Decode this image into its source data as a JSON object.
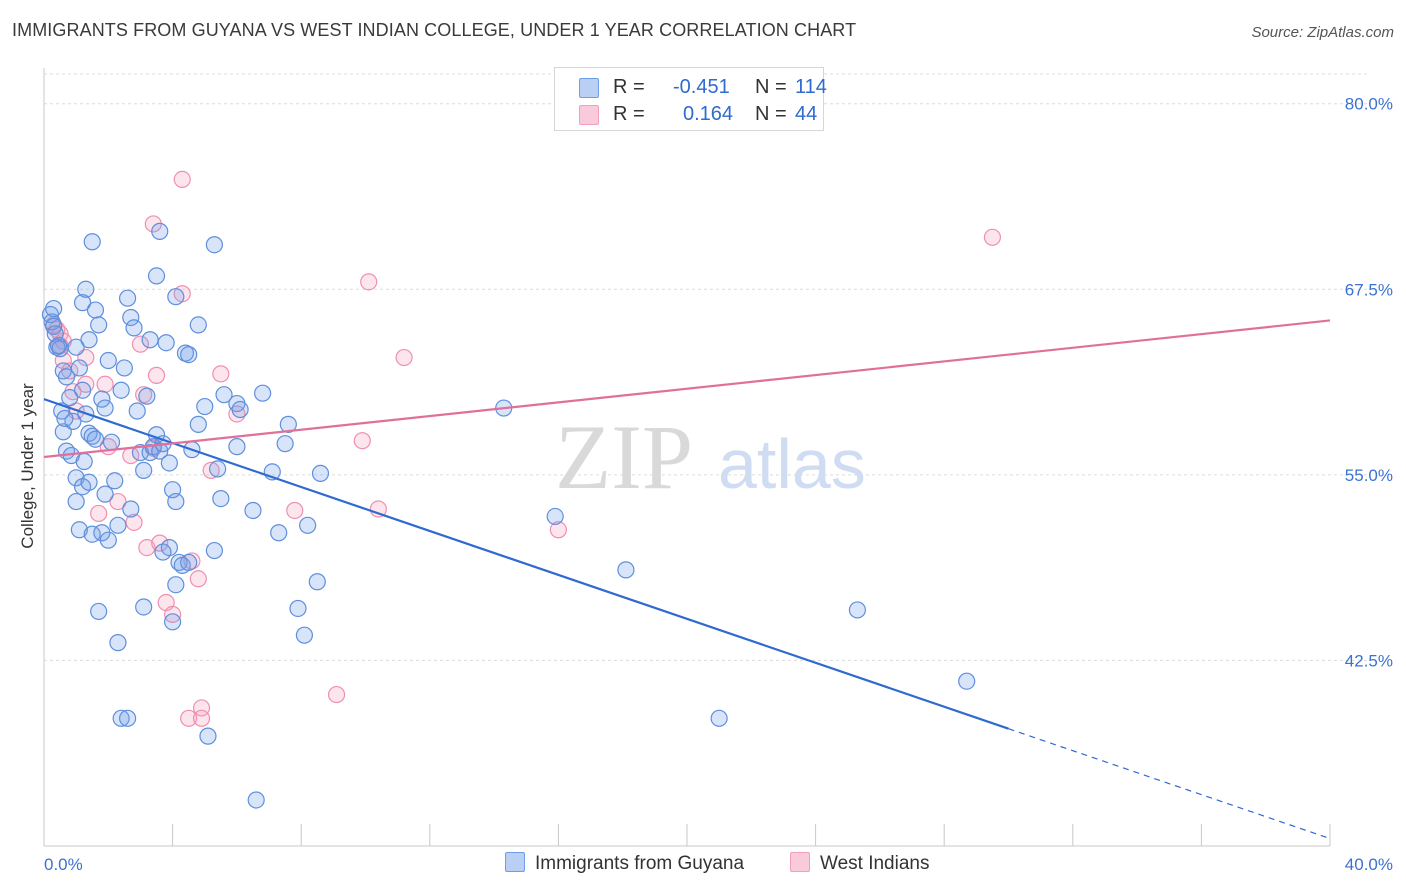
{
  "title": "IMMIGRANTS FROM GUYANA VS WEST INDIAN COLLEGE, UNDER 1 YEAR CORRELATION CHART",
  "source": "Source: ZipAtlas.com",
  "watermark": {
    "zip": "ZIP",
    "atlas": "atlas"
  },
  "legend": {
    "rows": [
      {
        "r_label": "R =",
        "r_value": "-0.451",
        "n_label": "N =",
        "n_value": "114"
      },
      {
        "r_label": "R =",
        "r_value": "0.164",
        "n_label": "N =",
        "n_value": "44"
      }
    ]
  },
  "chart_data": {
    "type": "scatter",
    "title": "IMMIGRANTS FROM GUYANA VS WEST INDIAN COLLEGE, UNDER 1 YEAR CORRELATION CHART",
    "xlabel": "",
    "ylabel": "College, Under 1 year",
    "xlim": [
      0,
      40
    ],
    "ylim": [
      30,
      82
    ],
    "x_tick_labels": [
      "0.0%",
      "40.0%"
    ],
    "y_ticks": [
      42.5,
      55.0,
      67.5,
      80.0
    ],
    "y_tick_labels": [
      "42.5%",
      "55.0%",
      "67.5%",
      "80.0%"
    ],
    "grid": true,
    "legend_position": "top-center",
    "colors": {
      "guyana": "#6f9ee8",
      "guyana_line": "#2f6ad0",
      "west": "#f4a0bb",
      "west_line": "#e0709a"
    },
    "series": [
      {
        "name": "Immigrants from Guyana",
        "points": [
          [
            0.2,
            65.8
          ],
          [
            0.25,
            65.3
          ],
          [
            0.3,
            65
          ],
          [
            0.35,
            64.5
          ],
          [
            0.4,
            63.6
          ],
          [
            0.5,
            63.5
          ],
          [
            0.6,
            62
          ],
          [
            0.7,
            61.6
          ],
          [
            0.8,
            60.2
          ],
          [
            0.55,
            59.3
          ],
          [
            0.9,
            58.6
          ],
          [
            0.6,
            57.9
          ],
          [
            0.7,
            56.6
          ],
          [
            1.0,
            63.6
          ],
          [
            1.1,
            62.2
          ],
          [
            1.2,
            60.7
          ],
          [
            1.3,
            59.1
          ],
          [
            1.4,
            57.8
          ],
          [
            1.5,
            57.6
          ],
          [
            1.6,
            57.4
          ],
          [
            1.0,
            54.8
          ],
          [
            1.2,
            54.2
          ],
          [
            1.0,
            53.2
          ],
          [
            1.1,
            51.3
          ],
          [
            1.4,
            54.5
          ],
          [
            1.5,
            51
          ],
          [
            1.7,
            45.8
          ],
          [
            1.2,
            66.6
          ],
          [
            1.3,
            67.5
          ],
          [
            1.6,
            66.1
          ],
          [
            1.4,
            64.1
          ],
          [
            1.5,
            70.7
          ],
          [
            1.7,
            65.1
          ],
          [
            1.8,
            60.1
          ],
          [
            1.9,
            59.5
          ],
          [
            2.0,
            62.7
          ],
          [
            2.1,
            57.2
          ],
          [
            2.2,
            54.6
          ],
          [
            2.3,
            51.6
          ],
          [
            2.5,
            62.2
          ],
          [
            2.6,
            66.9
          ],
          [
            2.7,
            65.6
          ],
          [
            2.8,
            64.9
          ],
          [
            2.4,
            60.7
          ],
          [
            2.9,
            59.3
          ],
          [
            3.0,
            56.5
          ],
          [
            3.1,
            55.3
          ],
          [
            3.3,
            56.5
          ],
          [
            3.4,
            56.9
          ],
          [
            3.2,
            60.3
          ],
          [
            3.5,
            57.7
          ],
          [
            3.6,
            56.6
          ],
          [
            3.7,
            57.1
          ],
          [
            3.8,
            63.9
          ],
          [
            3.3,
            64.1
          ],
          [
            3.5,
            68.4
          ],
          [
            3.6,
            71.4
          ],
          [
            3.9,
            55.8
          ],
          [
            4.0,
            54.0
          ],
          [
            4.1,
            53.2
          ],
          [
            3.9,
            50.1
          ],
          [
            4.2,
            49.1
          ],
          [
            4.3,
            48.9
          ],
          [
            4.5,
            49.1
          ],
          [
            3.7,
            49.8
          ],
          [
            4.4,
            63.2
          ],
          [
            4.5,
            63.1
          ],
          [
            4.1,
            67
          ],
          [
            4.6,
            56.7
          ],
          [
            4.8,
            58.4
          ],
          [
            4.8,
            65.1
          ],
          [
            5.0,
            59.6
          ],
          [
            5.4,
            55.4
          ],
          [
            5.5,
            53.4
          ],
          [
            5.3,
            49.9
          ],
          [
            5.3,
            70.5
          ],
          [
            5.6,
            60.4
          ],
          [
            6.0,
            59.8
          ],
          [
            6.1,
            59.4
          ],
          [
            6.0,
            56.9
          ],
          [
            6.5,
            52.6
          ],
          [
            6.8,
            60.5
          ],
          [
            7.1,
            55.2
          ],
          [
            7.3,
            51.1
          ],
          [
            7.5,
            57.1
          ],
          [
            7.6,
            58.4
          ],
          [
            7.9,
            46
          ],
          [
            8.2,
            51.6
          ],
          [
            8.1,
            44.2
          ],
          [
            8.5,
            47.8
          ],
          [
            8.6,
            55.1
          ],
          [
            5.1,
            37.4
          ],
          [
            6.6,
            33.1
          ],
          [
            2.4,
            38.6
          ],
          [
            2.6,
            38.6
          ],
          [
            2.3,
            43.7
          ],
          [
            3.1,
            46.1
          ],
          [
            4.0,
            45.1
          ],
          [
            4.1,
            47.6
          ],
          [
            1.8,
            51.1
          ],
          [
            2.0,
            50.6
          ],
          [
            14.3,
            59.5
          ],
          [
            15.9,
            52.2
          ],
          [
            18.1,
            48.6
          ],
          [
            21.0,
            38.6
          ],
          [
            25.3,
            45.9
          ],
          [
            28.7,
            41.1
          ],
          [
            0.3,
            66.2
          ],
          [
            0.45,
            63.7
          ],
          [
            0.65,
            58.8
          ],
          [
            0.85,
            56.3
          ],
          [
            1.25,
            55.9
          ],
          [
            1.9,
            53.7
          ],
          [
            2.7,
            52.7
          ]
        ],
        "trend": {
          "x": [
            0,
            30
          ],
          "y": [
            60.1,
            37.9
          ],
          "dashed_to": [
            40,
            30.5
          ]
        }
      },
      {
        "name": "West Indians",
        "points": [
          [
            0.3,
            65.1
          ],
          [
            0.4,
            64.8
          ],
          [
            0.5,
            64.5
          ],
          [
            0.6,
            64
          ],
          [
            0.5,
            63.7
          ],
          [
            0.6,
            62.7
          ],
          [
            0.8,
            62
          ],
          [
            0.9,
            60.6
          ],
          [
            1.0,
            59.3
          ],
          [
            1.3,
            61.1
          ],
          [
            1.3,
            62.9
          ],
          [
            1.9,
            61.1
          ],
          [
            2.0,
            56.9
          ],
          [
            2.3,
            53.2
          ],
          [
            1.7,
            52.4
          ],
          [
            2.7,
            56.3
          ],
          [
            2.8,
            51.8
          ],
          [
            3.2,
            50.1
          ],
          [
            3.0,
            63.8
          ],
          [
            3.1,
            60.4
          ],
          [
            3.4,
            56.8
          ],
          [
            3.5,
            61.7
          ],
          [
            3.4,
            71.9
          ],
          [
            3.6,
            50.4
          ],
          [
            3.8,
            46.4
          ],
          [
            4.0,
            45.6
          ],
          [
            4.3,
            67.2
          ],
          [
            4.3,
            74.9
          ],
          [
            4.6,
            49.2
          ],
          [
            4.8,
            48
          ],
          [
            4.9,
            39.3
          ],
          [
            4.5,
            38.6
          ],
          [
            4.9,
            38.6
          ],
          [
            5.2,
            55.3
          ],
          [
            5.5,
            61.8
          ],
          [
            6.0,
            59.1
          ],
          [
            7.8,
            52.6
          ],
          [
            9.1,
            40.2
          ],
          [
            9.9,
            57.3
          ],
          [
            10.1,
            68
          ],
          [
            10.4,
            52.7
          ],
          [
            11.2,
            62.9
          ],
          [
            16.0,
            51.3
          ],
          [
            29.5,
            71
          ]
        ],
        "trend": {
          "x": [
            0,
            40
          ],
          "y": [
            56.2,
            65.4
          ]
        }
      }
    ]
  }
}
